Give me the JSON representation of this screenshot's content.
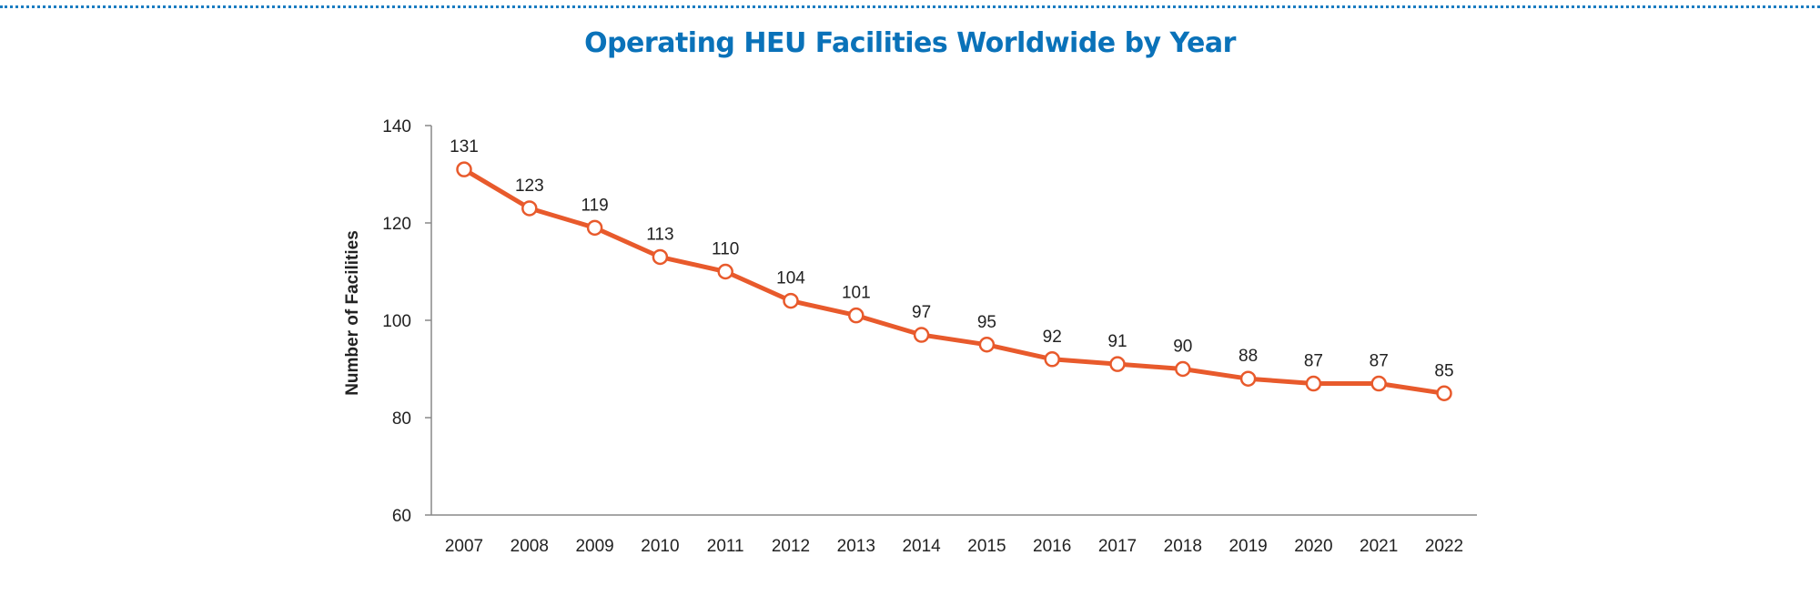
{
  "colors": {
    "title": "#0a72b9",
    "line": "#e85a2c",
    "axis": "#888888",
    "marker_fill": "#ffffff",
    "rule": "#1a7cc1"
  },
  "chart_data": {
    "type": "line",
    "title": "Operating HEU Facilities Worldwide by Year",
    "xlabel": "",
    "ylabel": "Number of Facilities",
    "x": [
      "2007",
      "2008",
      "2009",
      "2010",
      "2011",
      "2012",
      "2013",
      "2014",
      "2015",
      "2016",
      "2017",
      "2018",
      "2019",
      "2020",
      "2021",
      "2022"
    ],
    "series": [
      {
        "values": [
          131,
          123,
          119,
          113,
          110,
          104,
          101,
          97,
          95,
          92,
          91,
          90,
          88,
          87,
          87,
          85
        ]
      }
    ],
    "yticks": [
      "60",
      "80",
      "100",
      "120",
      "140"
    ],
    "ylim": [
      60,
      140
    ],
    "grid": false,
    "data_labels": true,
    "legend": "none"
  }
}
